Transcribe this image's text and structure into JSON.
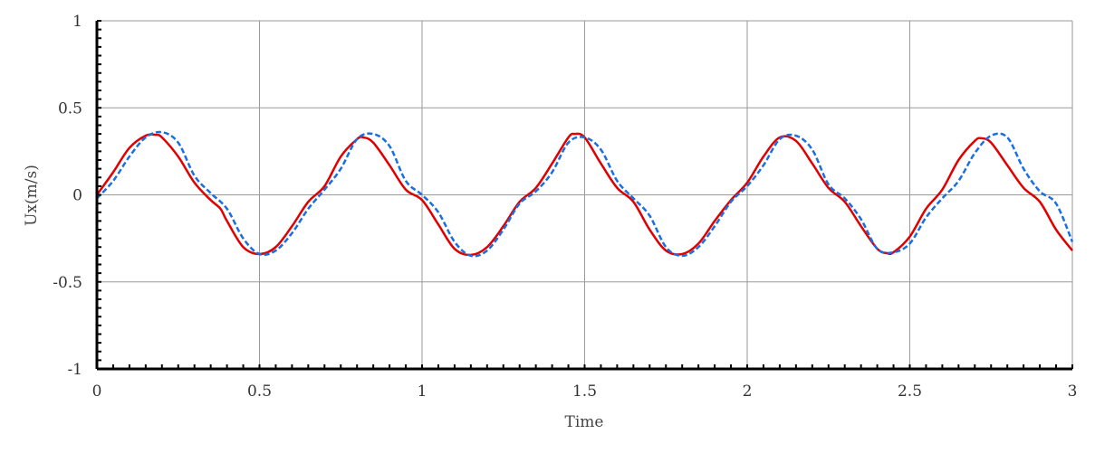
{
  "chart_data": {
    "type": "line",
    "title": "",
    "xlabel": "Time",
    "ylabel": "Ux(m/s)",
    "xlim": [
      0,
      3
    ],
    "ylim": [
      -1,
      1
    ],
    "x_ticks": [
      0,
      0.5,
      1,
      1.5,
      2,
      2.5,
      3
    ],
    "x_tick_labels": [
      "0",
      "0.5",
      "1",
      "1.5",
      "2",
      "2.5",
      "3"
    ],
    "y_ticks": [
      -1,
      -0.5,
      0,
      0.5,
      1
    ],
    "y_tick_labels": [
      "-1",
      "-0.5",
      "0",
      "0.5",
      "1"
    ],
    "grid": true,
    "legend": "none",
    "series": [
      {
        "color": "#e00000",
        "style": "solid",
        "x": [
          0,
          0.05,
          0.1,
          0.15,
          0.18,
          0.2,
          0.25,
          0.3,
          0.35,
          0.38,
          0.4,
          0.45,
          0.5,
          0.55,
          0.6,
          0.65,
          0.7,
          0.75,
          0.8,
          0.82,
          0.85,
          0.9,
          0.95,
          1.0,
          1.05,
          1.1,
          1.15,
          1.2,
          1.25,
          1.3,
          1.35,
          1.4,
          1.45,
          1.47,
          1.5,
          1.55,
          1.6,
          1.65,
          1.7,
          1.75,
          1.8,
          1.85,
          1.9,
          1.95,
          2.0,
          2.05,
          2.1,
          2.15,
          2.2,
          2.25,
          2.3,
          2.35,
          2.4,
          2.43,
          2.45,
          2.5,
          2.55,
          2.6,
          2.65,
          2.7,
          2.72,
          2.75,
          2.8,
          2.85,
          2.9,
          2.95,
          3.0
        ],
        "y": [
          0.0,
          0.13,
          0.27,
          0.34,
          0.345,
          0.33,
          0.22,
          0.07,
          -0.03,
          -0.08,
          -0.15,
          -0.3,
          -0.34,
          -0.3,
          -0.18,
          -0.04,
          0.05,
          0.22,
          0.32,
          0.33,
          0.3,
          0.17,
          0.03,
          -0.03,
          -0.17,
          -0.31,
          -0.345,
          -0.3,
          -0.18,
          -0.04,
          0.04,
          0.18,
          0.33,
          0.35,
          0.33,
          0.18,
          0.04,
          -0.04,
          -0.2,
          -0.32,
          -0.34,
          -0.28,
          -0.15,
          -0.03,
          0.07,
          0.22,
          0.33,
          0.31,
          0.18,
          0.04,
          -0.04,
          -0.18,
          -0.31,
          -0.335,
          -0.33,
          -0.24,
          -0.08,
          0.03,
          0.2,
          0.31,
          0.325,
          0.3,
          0.17,
          0.04,
          -0.04,
          -0.2,
          -0.32
        ]
      },
      {
        "color": "#1a6fe0",
        "style": "dashed",
        "x": [
          0,
          0.05,
          0.1,
          0.15,
          0.2,
          0.25,
          0.3,
          0.35,
          0.4,
          0.45,
          0.5,
          0.55,
          0.6,
          0.65,
          0.7,
          0.75,
          0.8,
          0.85,
          0.9,
          0.95,
          1.0,
          1.05,
          1.1,
          1.15,
          1.2,
          1.25,
          1.3,
          1.35,
          1.4,
          1.45,
          1.5,
          1.55,
          1.6,
          1.65,
          1.7,
          1.75,
          1.8,
          1.85,
          1.9,
          1.95,
          2.0,
          2.05,
          2.1,
          2.15,
          2.2,
          2.25,
          2.3,
          2.35,
          2.4,
          2.45,
          2.5,
          2.55,
          2.6,
          2.65,
          2.7,
          2.75,
          2.8,
          2.85,
          2.9,
          2.95,
          3.0
        ],
        "y": [
          -0.02,
          0.08,
          0.22,
          0.33,
          0.36,
          0.3,
          0.11,
          0.01,
          -0.08,
          -0.25,
          -0.34,
          -0.32,
          -0.22,
          -0.08,
          0.03,
          0.15,
          0.32,
          0.35,
          0.28,
          0.08,
          0.0,
          -0.1,
          -0.27,
          -0.35,
          -0.32,
          -0.2,
          -0.05,
          0.02,
          0.13,
          0.3,
          0.33,
          0.26,
          0.08,
          -0.02,
          -0.12,
          -0.3,
          -0.35,
          -0.3,
          -0.18,
          -0.04,
          0.05,
          0.17,
          0.32,
          0.34,
          0.26,
          0.06,
          -0.02,
          -0.14,
          -0.31,
          -0.33,
          -0.28,
          -0.13,
          -0.02,
          0.08,
          0.24,
          0.34,
          0.33,
          0.15,
          0.02,
          -0.05,
          -0.27
        ]
      }
    ]
  }
}
